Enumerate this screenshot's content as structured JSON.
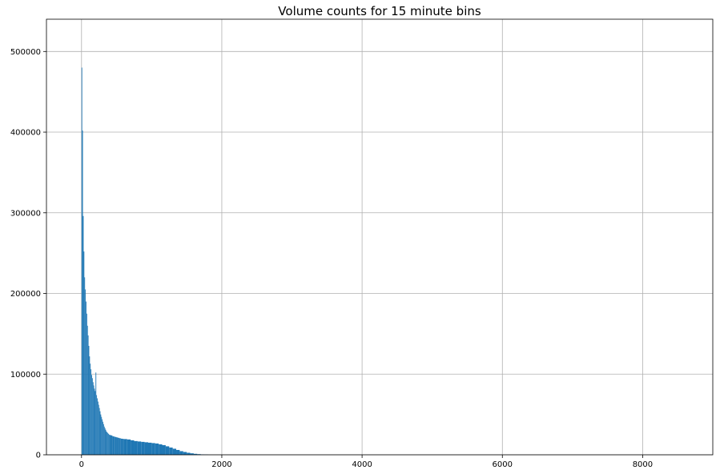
{
  "chart_data": {
    "type": "bar",
    "title": "Volume counts for 15 minute bins",
    "xlabel": "",
    "ylabel": "",
    "xlim": [
      -500,
      9000
    ],
    "ylim": [
      0,
      540000
    ],
    "grid": true,
    "bar_color": "#1f77b4",
    "xticks": [
      0,
      2000,
      4000,
      6000,
      8000
    ],
    "yticks": [
      0,
      100000,
      200000,
      300000,
      400000,
      500000
    ],
    "bin_width": 10,
    "bins": [
      [
        0,
        480000
      ],
      [
        10,
        402000
      ],
      [
        20,
        296000
      ],
      [
        30,
        252000
      ],
      [
        40,
        220000
      ],
      [
        50,
        205000
      ],
      [
        60,
        190000
      ],
      [
        70,
        175000
      ],
      [
        80,
        160000
      ],
      [
        90,
        148000
      ],
      [
        100,
        135000
      ],
      [
        110,
        122000
      ],
      [
        120,
        113000
      ],
      [
        130,
        106000
      ],
      [
        140,
        99000
      ],
      [
        150,
        95000
      ],
      [
        160,
        90000
      ],
      [
        170,
        86000
      ],
      [
        180,
        82000
      ],
      [
        190,
        79000
      ],
      [
        200,
        102000
      ],
      [
        210,
        74000
      ],
      [
        220,
        70000
      ],
      [
        230,
        66000
      ],
      [
        240,
        62000
      ],
      [
        250,
        58000
      ],
      [
        260,
        54000
      ],
      [
        270,
        50000
      ],
      [
        280,
        47000
      ],
      [
        290,
        44000
      ],
      [
        300,
        41000
      ],
      [
        310,
        38000
      ],
      [
        320,
        35000
      ],
      [
        330,
        33000
      ],
      [
        340,
        31000
      ],
      [
        350,
        29000
      ],
      [
        360,
        28000
      ],
      [
        370,
        27000
      ],
      [
        380,
        26000
      ],
      [
        390,
        25000
      ],
      [
        400,
        24500
      ],
      [
        420,
        24000
      ],
      [
        440,
        23000
      ],
      [
        460,
        22500
      ],
      [
        480,
        22000
      ],
      [
        500,
        21500
      ],
      [
        520,
        21000
      ],
      [
        540,
        20500
      ],
      [
        560,
        20000
      ],
      [
        580,
        19800
      ],
      [
        600,
        19500
      ],
      [
        650,
        19000
      ],
      [
        700,
        18000
      ],
      [
        750,
        17000
      ],
      [
        800,
        16500
      ],
      [
        850,
        16000
      ],
      [
        900,
        15500
      ],
      [
        950,
        15000
      ],
      [
        1000,
        14500
      ],
      [
        1050,
        14000
      ],
      [
        1100,
        13000
      ],
      [
        1150,
        12000
      ],
      [
        1200,
        10500
      ],
      [
        1250,
        9000
      ],
      [
        1300,
        7500
      ],
      [
        1350,
        6000
      ],
      [
        1400,
        4500
      ],
      [
        1450,
        3500
      ],
      [
        1500,
        2500
      ],
      [
        1550,
        1800
      ],
      [
        1600,
        1200
      ],
      [
        1650,
        800
      ],
      [
        1700,
        500
      ],
      [
        1750,
        300
      ],
      [
        1800,
        150
      ]
    ]
  }
}
